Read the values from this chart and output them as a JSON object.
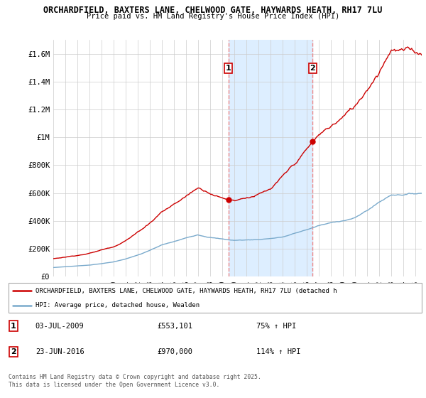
{
  "title_line1": "ORCHARDFIELD, BAXTERS LANE, CHELWOOD GATE, HAYWARDS HEATH, RH17 7LU",
  "title_line2": "Price paid vs. HM Land Registry's House Price Index (HPI)",
  "ylim": [
    0,
    1700000
  ],
  "yticks": [
    0,
    200000,
    400000,
    600000,
    800000,
    1000000,
    1200000,
    1400000,
    1600000
  ],
  "ytick_labels": [
    "£0",
    "£200K",
    "£400K",
    "£600K",
    "£800K",
    "£1M",
    "£1.2M",
    "£1.4M",
    "£1.6M"
  ],
  "sale1_x": 2009.5,
  "sale1_y": 553101,
  "sale2_x": 2016.47,
  "sale2_y": 970000,
  "legend_line1": "ORCHARDFIELD, BAXTERS LANE, CHELWOOD GATE, HAYWARDS HEATH, RH17 7LU (detached h",
  "legend_line2": "HPI: Average price, detached house, Wealden",
  "note1_date": "03-JUL-2009",
  "note1_price": "£553,101",
  "note1_pct": "75% ↑ HPI",
  "note2_date": "23-JUN-2016",
  "note2_price": "£970,000",
  "note2_pct": "114% ↑ HPI",
  "footer": "Contains HM Land Registry data © Crown copyright and database right 2025.\nThis data is licensed under the Open Government Licence v3.0.",
  "red_color": "#cc0000",
  "blue_color": "#7aaacc",
  "shading_color": "#ddeeff",
  "vline_color": "#ee8888",
  "grid_color": "#cccccc",
  "xlim_left": 1995,
  "xlim_right": 2025.5
}
